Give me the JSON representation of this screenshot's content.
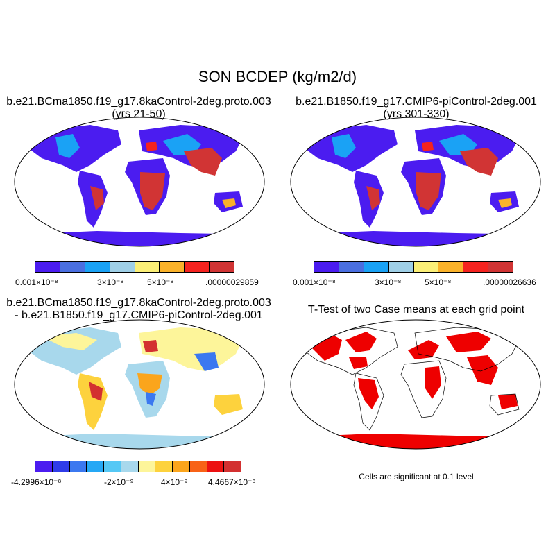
{
  "title": "SON BCDEP (kg/m2/d)",
  "panels": {
    "p1": {
      "title1": "b.e21.BCma1850.f19_g17.8kaControl-2deg.proto.003",
      "title2": "(yrs 21-50)"
    },
    "p2": {
      "title1": "b.e21.B1850.f19_g17.CMIP6-piControl-2deg.001",
      "title2": "(yrs 301-330)"
    },
    "p3": {
      "title1": "b.e21.BCma1850.f19_g17.8kaControl-2deg.proto.003",
      "title2": "- b.e21.B1850.f19_g17.CMIP6-piControl-2deg.001"
    },
    "p4": {
      "title1": "T-Test of two Case means at each grid point",
      "note": "Cells are significant at 0.1 level"
    }
  },
  "colorbars": {
    "cb1": {
      "colors": [
        "#4b1cf0",
        "#4a6fe0",
        "#1aa2f5",
        "#9fcfe6",
        "#fbef77",
        "#fab22a",
        "#f5231f",
        "#d13434"
      ],
      "labels": [
        "0.001×10⁻⁸",
        "3×10⁻⁸",
        "5×10⁻⁸",
        ".00000029859"
      ]
    },
    "cb2": {
      "colors": [
        "#4b1cf0",
        "#4a6fe0",
        "#1aa2f5",
        "#9fcfe6",
        "#fbef77",
        "#fab22a",
        "#f5231f",
        "#d13434"
      ],
      "labels": [
        "0.001×10⁻⁸",
        "3×10⁻⁸",
        "5×10⁻⁸",
        ".00000026636"
      ]
    },
    "cb3": {
      "colors": [
        "#4b1cf0",
        "#2f3ce8",
        "#3b78f0",
        "#25a8f5",
        "#55c8f5",
        "#a8d8ec",
        "#fdf59a",
        "#fdd23d",
        "#fba51c",
        "#f86216",
        "#ec1111",
        "#d33030"
      ],
      "labels": [
        "-4.2996×10⁻⁸",
        "-2×10⁻⁹",
        "4×10⁻⁹",
        "4.4667×10⁻⁸"
      ]
    }
  }
}
